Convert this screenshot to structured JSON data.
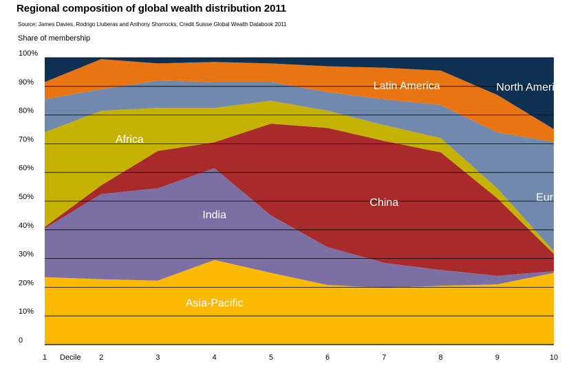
{
  "title": "Regional composition of global wealth distribution 2011",
  "source": "Source: James Davies, Rodrigo Lluberas and Anthony Shorrocks, Credit Suisse Global Wealth Databook 2011",
  "chart_data": {
    "type": "area",
    "stacked": true,
    "ylabel": "Share of membership",
    "xlabel": "Decile",
    "x": [
      1,
      2,
      3,
      4,
      5,
      6,
      7,
      8,
      9,
      10
    ],
    "xticks": [
      "1",
      "2",
      "3",
      "4",
      "5",
      "6",
      "7",
      "8",
      "9",
      "10"
    ],
    "ylim": [
      0,
      100
    ],
    "yticks": [
      "0",
      "10%",
      "20%",
      "30%",
      "40%",
      "50%",
      "60%",
      "70%",
      "80%",
      "90%",
      "100%"
    ],
    "grid": true,
    "series": [
      {
        "name": "Asia-Pacific",
        "color": "#fbb900",
        "values": [
          23.5,
          22.8,
          22.3,
          29.5,
          25.0,
          20.8,
          19.8,
          20.5,
          21.0,
          25.0
        ]
      },
      {
        "name": "India",
        "color": "#7c6fa4",
        "values": [
          17.0,
          29.7,
          32.2,
          32.0,
          20.0,
          13.2,
          8.7,
          5.5,
          3.0,
          0.6
        ]
      },
      {
        "name": "China",
        "color": "#a82a2a",
        "values": [
          0.5,
          3.0,
          13.0,
          9.0,
          32.0,
          41.5,
          42.5,
          41.0,
          27.0,
          6.0
        ]
      },
      {
        "name": "Africa",
        "color": "#c5b200",
        "values": [
          33.0,
          26.0,
          15.0,
          12.0,
          8.0,
          6.0,
          5.5,
          5.0,
          3.5,
          1.0
        ]
      },
      {
        "name": "Europe",
        "color": "#7189ac",
        "values": [
          11.5,
          7.5,
          9.5,
          9.0,
          6.5,
          6.5,
          9.0,
          11.5,
          19.5,
          38.0
        ]
      },
      {
        "name": "Latin America",
        "color": "#e87512",
        "values": [
          6.0,
          10.5,
          6.0,
          7.0,
          6.5,
          9.0,
          11.0,
          12.0,
          13.0,
          4.5
        ]
      },
      {
        "name": "North America",
        "color": "#0e3052",
        "values": [
          8.5,
          0.5,
          2.0,
          1.5,
          2.0,
          3.0,
          3.5,
          4.5,
          13.0,
          24.9
        ]
      }
    ]
  }
}
